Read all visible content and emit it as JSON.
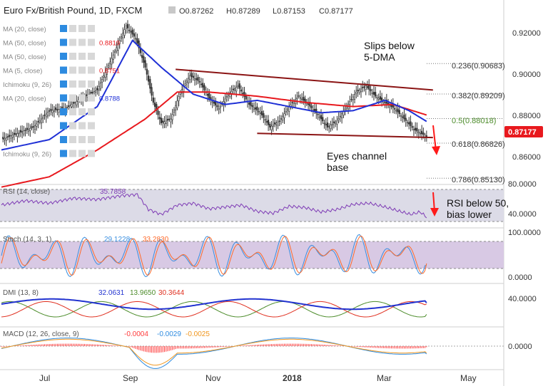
{
  "header": {
    "title": "Euro Fx/British Pound, 1D, FXCM",
    "ohlc": [
      "O0.87262",
      "H0.87289",
      "L0.87153",
      "C0.87177"
    ]
  },
  "legend_rows": [
    {
      "label": "MA (20, close)",
      "value": ""
    },
    {
      "label": "MA (50, close)",
      "value": "0.8819"
    },
    {
      "label": "MA (50, close)",
      "value": ""
    },
    {
      "label": "MA (5, close)",
      "value": "0.8751"
    },
    {
      "label": "Ichimoku (9, 26)",
      "value": ""
    },
    {
      "label": "MA (20, close)",
      "value": "0.8788"
    },
    {
      "label": "",
      "value": ""
    },
    {
      "label": "",
      "value": ""
    },
    {
      "label": "",
      "value": ""
    },
    {
      "label": "Ichimoku (9, 26)",
      "value": ""
    }
  ],
  "annotations": {
    "slips_line1": "Slips below",
    "slips_line2": "5-DMA",
    "eyes_line1": "Eyes channel",
    "eyes_line2": "base",
    "rsi_line1": "RSI below 50,",
    "rsi_line2": "bias lower"
  },
  "fib_labels": [
    "0.236(0.90683)",
    "0.382(0.89209)",
    "0.5(0.88018)",
    "0.618(0.86826)",
    "0.786(0.85130)"
  ],
  "price_axis": {
    "ticks": [
      "0.92000",
      "0.90000",
      "0.88000",
      "0.86000"
    ],
    "last": "0.87177"
  },
  "time_axis": [
    "Jul",
    "Sep",
    "Nov",
    "2018",
    "Mar",
    "May"
  ],
  "indicators": {
    "rsi": {
      "label": "RSI (14, close)",
      "value": "35.7858",
      "ticks": [
        "80.0000",
        "40.0000"
      ]
    },
    "stoch": {
      "label": "Stoch (14, 3, 1)",
      "v1": "29.1228",
      "v2": "33.2830",
      "ticks": [
        "100.0000",
        "0.0000"
      ]
    },
    "dmi": {
      "label": "DMI (13, 8)",
      "v1": "32.0631",
      "v2": "13.9650",
      "v3": "30.3644",
      "ticks": [
        "40.0000"
      ]
    },
    "macd": {
      "label": "MACD (12, 26, close, 9)",
      "v1": "-0.0004",
      "v2": "-0.0029",
      "v3": "-0.0025",
      "ticks": [
        "0.0000"
      ]
    }
  },
  "colors": {
    "candle": "#333333",
    "ma_red": "#e8191e",
    "ma_blue": "#1f30d6",
    "channel": "#8b1414",
    "arrow": "#ff1a1a",
    "last_badge": "#e8191e",
    "axis_text": "#333333",
    "rsi_band": "#dcdbe7",
    "stoch_band": "#d8c9e4",
    "stoch_k": "#3a8fe0",
    "stoch_d": "#ff6a2a",
    "dmi_adx": "#2233d0",
    "dmi_plus": "#4c8c2a",
    "dmi_minus": "#e03020",
    "macd_hist": "#ff3b3b",
    "macd_line": "#2d8be0",
    "signal_line": "#f0961e",
    "rsi_line": "#7e3bb5"
  },
  "chart_data": {
    "type": "candlestick",
    "title": "Euro Fx/British Pound, 1D, FXCM",
    "timeframe": "1D",
    "x_labels": [
      "Jul",
      "Sep",
      "Nov",
      "2018",
      "Mar",
      "May"
    ],
    "ylim": [
      0.845,
      0.935
    ],
    "close_path": [
      [
        0,
        0.87
      ],
      [
        10,
        0.873
      ],
      [
        20,
        0.876
      ],
      [
        30,
        0.884
      ],
      [
        40,
        0.885
      ],
      [
        50,
        0.89
      ],
      [
        60,
        0.894
      ],
      [
        70,
        0.911
      ],
      [
        78,
        0.925
      ],
      [
        84,
        0.919
      ],
      [
        90,
        0.905
      ],
      [
        95,
        0.888
      ],
      [
        100,
        0.878
      ],
      [
        106,
        0.88
      ],
      [
        112,
        0.893
      ],
      [
        118,
        0.901
      ],
      [
        124,
        0.898
      ],
      [
        130,
        0.89
      ],
      [
        136,
        0.885
      ],
      [
        142,
        0.892
      ],
      [
        148,
        0.896
      ],
      [
        155,
        0.887
      ],
      [
        162,
        0.883
      ],
      [
        168,
        0.876
      ],
      [
        174,
        0.879
      ],
      [
        180,
        0.886
      ],
      [
        186,
        0.891
      ],
      [
        192,
        0.887
      ],
      [
        198,
        0.882
      ],
      [
        204,
        0.876
      ],
      [
        210,
        0.879
      ],
      [
        216,
        0.886
      ],
      [
        222,
        0.893
      ],
      [
        228,
        0.896
      ],
      [
        234,
        0.891
      ],
      [
        240,
        0.888
      ],
      [
        246,
        0.885
      ],
      [
        252,
        0.88
      ],
      [
        258,
        0.875
      ],
      [
        262,
        0.8731
      ],
      [
        266,
        0.8718
      ]
    ],
    "ma_red": [
      [
        0,
        0.847
      ],
      [
        30,
        0.852
      ],
      [
        60,
        0.865
      ],
      [
        90,
        0.88
      ],
      [
        110,
        0.893
      ],
      [
        130,
        0.893
      ],
      [
        160,
        0.891
      ],
      [
        190,
        0.888
      ],
      [
        220,
        0.886
      ],
      [
        245,
        0.887
      ],
      [
        266,
        0.8819
      ]
    ],
    "ma_blue": [
      [
        0,
        0.865
      ],
      [
        30,
        0.87
      ],
      [
        60,
        0.886
      ],
      [
        82,
        0.918
      ],
      [
        100,
        0.905
      ],
      [
        120,
        0.892
      ],
      [
        140,
        0.887
      ],
      [
        160,
        0.889
      ],
      [
        180,
        0.886
      ],
      [
        200,
        0.883
      ],
      [
        220,
        0.884
      ],
      [
        240,
        0.889
      ],
      [
        255,
        0.884
      ],
      [
        266,
        0.8788
      ]
    ],
    "channel_upper": [
      [
        109,
        0.904
      ],
      [
        270,
        0.894
      ]
    ],
    "channel_lower": [
      [
        160,
        0.873
      ],
      [
        270,
        0.871
      ]
    ],
    "fibonacci": {
      "0.236": 0.90683,
      "0.382": 0.89209,
      "0.5": 0.88018,
      "0.618": 0.86826,
      "0.786": 0.8513
    },
    "last_close": 0.87177,
    "ohlc_last": {
      "open": 0.87262,
      "high": 0.87289,
      "low": 0.87153,
      "close": 0.87177
    },
    "rsi": {
      "period": 14,
      "last": 35.7858,
      "series": [
        [
          0,
          55
        ],
        [
          15,
          62
        ],
        [
          30,
          58
        ],
        [
          45,
          66
        ],
        [
          60,
          64
        ],
        [
          75,
          70
        ],
        [
          85,
          72
        ],
        [
          92,
          48
        ],
        [
          100,
          40
        ],
        [
          110,
          55
        ],
        [
          120,
          58
        ],
        [
          130,
          49
        ],
        [
          140,
          52
        ],
        [
          150,
          55
        ],
        [
          160,
          45
        ],
        [
          170,
          42
        ],
        [
          180,
          53
        ],
        [
          190,
          51
        ],
        [
          200,
          44
        ],
        [
          210,
          48
        ],
        [
          220,
          56
        ],
        [
          230,
          58
        ],
        [
          240,
          52
        ],
        [
          248,
          46
        ],
        [
          256,
          40
        ],
        [
          262,
          44
        ],
        [
          266,
          35.79
        ]
      ]
    },
    "stoch": {
      "k_last": 29.1228,
      "d_last": 33.283
    },
    "dmi": {
      "adx_last": 32.0631,
      "plus_di_last": 13.965,
      "minus_di_last": 30.3644
    },
    "macd": {
      "hist_last": -0.0004,
      "macd_last": -0.0029,
      "signal_last": -0.0025
    }
  }
}
